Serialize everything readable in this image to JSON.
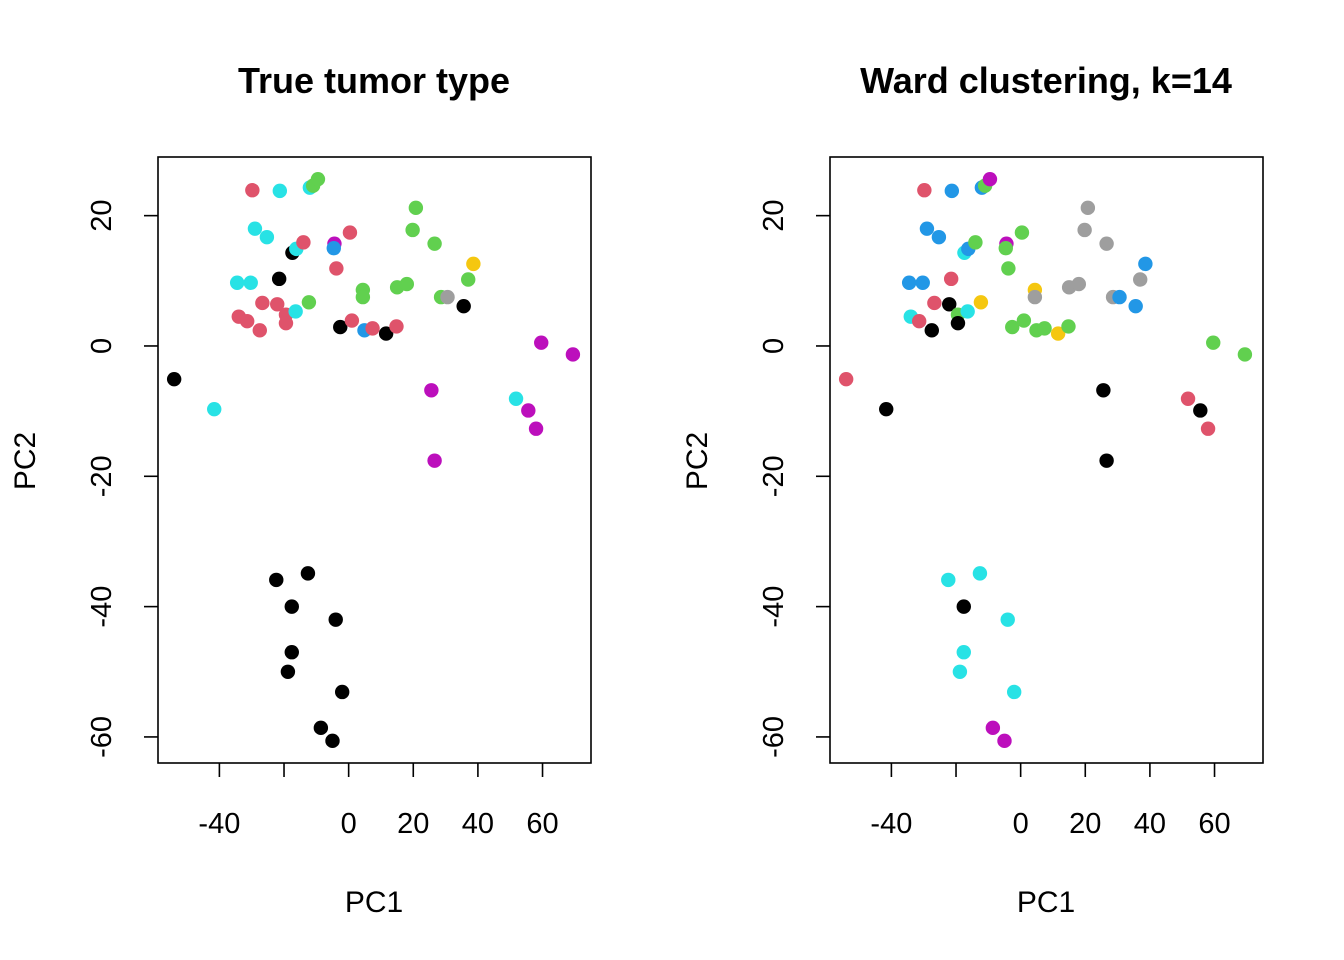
{
  "chart_data": [
    {
      "type": "scatter",
      "title": "True tumor type",
      "xlabel": "PC1",
      "ylabel": "PC2",
      "xlim": [
        -59,
        75
      ],
      "ylim": [
        -64,
        29
      ],
      "xticks": [
        -40,
        0,
        20,
        40,
        60
      ],
      "xtick_labels": [
        "-40",
        "0",
        "20",
        "40",
        "60"
      ],
      "xtick_marks": [
        -40,
        -20,
        0,
        20,
        40,
        60
      ],
      "yticks": [
        -60,
        -40,
        -20,
        0,
        20
      ],
      "ytick_labels": [
        "-60",
        "-40",
        "-20",
        "0",
        "20"
      ],
      "grid": false,
      "points": [
        {
          "x": -54.0,
          "y": -5.1,
          "color": "#000000"
        },
        {
          "x": -41.6,
          "y": -9.7,
          "color": "#28E2E5"
        },
        {
          "x": -29.8,
          "y": 23.9,
          "color": "#DF536B"
        },
        {
          "x": -29.0,
          "y": 18.0,
          "color": "#28E2E5"
        },
        {
          "x": -25.3,
          "y": 16.7,
          "color": "#28E2E5"
        },
        {
          "x": -34.5,
          "y": 9.7,
          "color": "#28E2E5"
        },
        {
          "x": -30.3,
          "y": 9.7,
          "color": "#28E2E5"
        },
        {
          "x": -26.7,
          "y": 6.6,
          "color": "#DF536B"
        },
        {
          "x": -22.1,
          "y": 6.4,
          "color": "#DF536B"
        },
        {
          "x": -34.0,
          "y": 4.5,
          "color": "#DF536B"
        },
        {
          "x": -31.4,
          "y": 3.8,
          "color": "#DF536B"
        },
        {
          "x": -27.5,
          "y": 2.4,
          "color": "#DF536B"
        },
        {
          "x": -19.4,
          "y": 4.8,
          "color": "#DF536B"
        },
        {
          "x": -19.4,
          "y": 3.5,
          "color": "#DF536B"
        },
        {
          "x": -16.4,
          "y": 5.3,
          "color": "#28E2E5"
        },
        {
          "x": -21.5,
          "y": 10.3,
          "color": "#000000"
        },
        {
          "x": -21.3,
          "y": 23.8,
          "color": "#28E2E5"
        },
        {
          "x": -17.4,
          "y": 14.3,
          "color": "#000000"
        },
        {
          "x": -16.2,
          "y": 14.9,
          "color": "#28E2E5"
        },
        {
          "x": -14.0,
          "y": 15.9,
          "color": "#DF536B"
        },
        {
          "x": -12.0,
          "y": 24.3,
          "color": "#28E2E5"
        },
        {
          "x": -11.0,
          "y": 24.6,
          "color": "#61D04F"
        },
        {
          "x": -9.5,
          "y": 25.6,
          "color": "#61D04F"
        },
        {
          "x": -12.3,
          "y": 6.7,
          "color": "#61D04F"
        },
        {
          "x": -4.4,
          "y": 15.7,
          "color": "#BC0FBC"
        },
        {
          "x": -4.6,
          "y": 15.0,
          "color": "#2297E6"
        },
        {
          "x": -3.8,
          "y": 11.9,
          "color": "#DF536B"
        },
        {
          "x": 0.4,
          "y": 17.4,
          "color": "#DF536B"
        },
        {
          "x": -2.6,
          "y": 2.9,
          "color": "#000000"
        },
        {
          "x": 1.0,
          "y": 3.9,
          "color": "#DF536B"
        },
        {
          "x": 4.4,
          "y": 8.6,
          "color": "#61D04F"
        },
        {
          "x": 4.4,
          "y": 7.5,
          "color": "#61D04F"
        },
        {
          "x": 4.9,
          "y": 2.4,
          "color": "#2297E6"
        },
        {
          "x": 7.4,
          "y": 2.7,
          "color": "#DF536B"
        },
        {
          "x": 11.6,
          "y": 1.9,
          "color": "#000000"
        },
        {
          "x": 14.8,
          "y": 3.0,
          "color": "#DF536B"
        },
        {
          "x": 15.0,
          "y": 9.0,
          "color": "#61D04F"
        },
        {
          "x": 18.0,
          "y": 9.5,
          "color": "#61D04F"
        },
        {
          "x": 19.8,
          "y": 17.8,
          "color": "#61D04F"
        },
        {
          "x": 20.8,
          "y": 21.2,
          "color": "#61D04F"
        },
        {
          "x": 26.6,
          "y": 15.7,
          "color": "#61D04F"
        },
        {
          "x": 28.6,
          "y": 7.5,
          "color": "#61D04F"
        },
        {
          "x": 30.6,
          "y": 7.5,
          "color": "#9E9E9E"
        },
        {
          "x": 35.6,
          "y": 6.1,
          "color": "#000000"
        },
        {
          "x": 37.0,
          "y": 10.2,
          "color": "#61D04F"
        },
        {
          "x": 38.6,
          "y": 12.6,
          "color": "#F5C710"
        },
        {
          "x": 25.6,
          "y": -6.8,
          "color": "#BC0FBC"
        },
        {
          "x": 26.6,
          "y": -17.6,
          "color": "#BC0FBC"
        },
        {
          "x": 51.8,
          "y": -8.1,
          "color": "#28E2E5"
        },
        {
          "x": 55.6,
          "y": -9.9,
          "color": "#BC0FBC"
        },
        {
          "x": 58.0,
          "y": -12.7,
          "color": "#BC0FBC"
        },
        {
          "x": 59.6,
          "y": 0.5,
          "color": "#BC0FBC"
        },
        {
          "x": 69.4,
          "y": -1.3,
          "color": "#BC0FBC"
        },
        {
          "x": -22.4,
          "y": -35.9,
          "color": "#000000"
        },
        {
          "x": -12.6,
          "y": -34.9,
          "color": "#000000"
        },
        {
          "x": -17.6,
          "y": -40.0,
          "color": "#000000"
        },
        {
          "x": -4.0,
          "y": -42.0,
          "color": "#000000"
        },
        {
          "x": -17.6,
          "y": -47.0,
          "color": "#000000"
        },
        {
          "x": -18.8,
          "y": -50.0,
          "color": "#000000"
        },
        {
          "x": -2.0,
          "y": -53.1,
          "color": "#000000"
        },
        {
          "x": -8.6,
          "y": -58.6,
          "color": "#000000"
        },
        {
          "x": -5.0,
          "y": -60.6,
          "color": "#000000"
        }
      ]
    },
    {
      "type": "scatter",
      "title": "Ward clustering, k=14",
      "xlabel": "PC1",
      "ylabel": "PC2",
      "xlim": [
        -59,
        75
      ],
      "ylim": [
        -64,
        29
      ],
      "xticks": [
        -40,
        0,
        20,
        40,
        60
      ],
      "xtick_labels": [
        "-40",
        "0",
        "20",
        "40",
        "60"
      ],
      "xtick_marks": [
        -40,
        -20,
        0,
        20,
        40,
        60
      ],
      "yticks": [
        -60,
        -40,
        -20,
        0,
        20
      ],
      "ytick_labels": [
        "-60",
        "-40",
        "-20",
        "0",
        "20"
      ],
      "grid": false,
      "points": [
        {
          "x": -54.0,
          "y": -5.1,
          "color": "#DF536B"
        },
        {
          "x": -41.6,
          "y": -9.7,
          "color": "#000000"
        },
        {
          "x": -29.8,
          "y": 23.9,
          "color": "#DF536B"
        },
        {
          "x": -29.0,
          "y": 18.0,
          "color": "#2297E6"
        },
        {
          "x": -25.3,
          "y": 16.7,
          "color": "#2297E6"
        },
        {
          "x": -34.5,
          "y": 9.7,
          "color": "#2297E6"
        },
        {
          "x": -30.3,
          "y": 9.7,
          "color": "#2297E6"
        },
        {
          "x": -26.7,
          "y": 6.6,
          "color": "#DF536B"
        },
        {
          "x": -22.1,
          "y": 6.4,
          "color": "#000000"
        },
        {
          "x": -34.0,
          "y": 4.5,
          "color": "#28E2E5"
        },
        {
          "x": -31.4,
          "y": 3.8,
          "color": "#DF536B"
        },
        {
          "x": -27.5,
          "y": 2.4,
          "color": "#000000"
        },
        {
          "x": -19.4,
          "y": 4.8,
          "color": "#61D04F"
        },
        {
          "x": -19.4,
          "y": 3.5,
          "color": "#000000"
        },
        {
          "x": -16.4,
          "y": 5.3,
          "color": "#28E2E5"
        },
        {
          "x": -21.5,
          "y": 10.3,
          "color": "#DF536B"
        },
        {
          "x": -21.3,
          "y": 23.8,
          "color": "#2297E6"
        },
        {
          "x": -17.4,
          "y": 14.3,
          "color": "#28E2E5"
        },
        {
          "x": -16.2,
          "y": 14.9,
          "color": "#2297E6"
        },
        {
          "x": -14.0,
          "y": 15.9,
          "color": "#61D04F"
        },
        {
          "x": -12.0,
          "y": 24.3,
          "color": "#2297E6"
        },
        {
          "x": -11.0,
          "y": 24.6,
          "color": "#61D04F"
        },
        {
          "x": -9.5,
          "y": 25.6,
          "color": "#BC0FBC"
        },
        {
          "x": -12.3,
          "y": 6.7,
          "color": "#F5C710"
        },
        {
          "x": -4.4,
          "y": 15.7,
          "color": "#BC0FBC"
        },
        {
          "x": -4.6,
          "y": 15.0,
          "color": "#61D04F"
        },
        {
          "x": -3.8,
          "y": 11.9,
          "color": "#61D04F"
        },
        {
          "x": 0.4,
          "y": 17.4,
          "color": "#61D04F"
        },
        {
          "x": -2.6,
          "y": 2.9,
          "color": "#61D04F"
        },
        {
          "x": 1.0,
          "y": 3.9,
          "color": "#61D04F"
        },
        {
          "x": 4.4,
          "y": 8.6,
          "color": "#F5C710"
        },
        {
          "x": 4.4,
          "y": 7.5,
          "color": "#9E9E9E"
        },
        {
          "x": 4.9,
          "y": 2.4,
          "color": "#61D04F"
        },
        {
          "x": 7.4,
          "y": 2.7,
          "color": "#61D04F"
        },
        {
          "x": 11.6,
          "y": 1.9,
          "color": "#F5C710"
        },
        {
          "x": 14.8,
          "y": 3.0,
          "color": "#61D04F"
        },
        {
          "x": 15.0,
          "y": 9.0,
          "color": "#9E9E9E"
        },
        {
          "x": 18.0,
          "y": 9.5,
          "color": "#9E9E9E"
        },
        {
          "x": 19.8,
          "y": 17.8,
          "color": "#9E9E9E"
        },
        {
          "x": 20.8,
          "y": 21.2,
          "color": "#9E9E9E"
        },
        {
          "x": 26.6,
          "y": 15.7,
          "color": "#9E9E9E"
        },
        {
          "x": 28.6,
          "y": 7.5,
          "color": "#9E9E9E"
        },
        {
          "x": 30.6,
          "y": 7.5,
          "color": "#2297E6"
        },
        {
          "x": 35.6,
          "y": 6.1,
          "color": "#2297E6"
        },
        {
          "x": 37.0,
          "y": 10.2,
          "color": "#9E9E9E"
        },
        {
          "x": 38.6,
          "y": 12.6,
          "color": "#2297E6"
        },
        {
          "x": 25.6,
          "y": -6.8,
          "color": "#000000"
        },
        {
          "x": 26.6,
          "y": -17.6,
          "color": "#000000"
        },
        {
          "x": 51.8,
          "y": -8.1,
          "color": "#DF536B"
        },
        {
          "x": 55.6,
          "y": -9.9,
          "color": "#000000"
        },
        {
          "x": 58.0,
          "y": -12.7,
          "color": "#DF536B"
        },
        {
          "x": 59.6,
          "y": 0.5,
          "color": "#61D04F"
        },
        {
          "x": 69.4,
          "y": -1.3,
          "color": "#61D04F"
        },
        {
          "x": -22.4,
          "y": -35.9,
          "color": "#28E2E5"
        },
        {
          "x": -12.6,
          "y": -34.9,
          "color": "#28E2E5"
        },
        {
          "x": -17.6,
          "y": -40.0,
          "color": "#000000"
        },
        {
          "x": -4.0,
          "y": -42.0,
          "color": "#28E2E5"
        },
        {
          "x": -17.6,
          "y": -47.0,
          "color": "#28E2E5"
        },
        {
          "x": -18.8,
          "y": -50.0,
          "color": "#28E2E5"
        },
        {
          "x": -2.0,
          "y": -53.1,
          "color": "#28E2E5"
        },
        {
          "x": -8.6,
          "y": -58.6,
          "color": "#BC0FBC"
        },
        {
          "x": -5.0,
          "y": -60.6,
          "color": "#BC0FBC"
        }
      ]
    }
  ]
}
